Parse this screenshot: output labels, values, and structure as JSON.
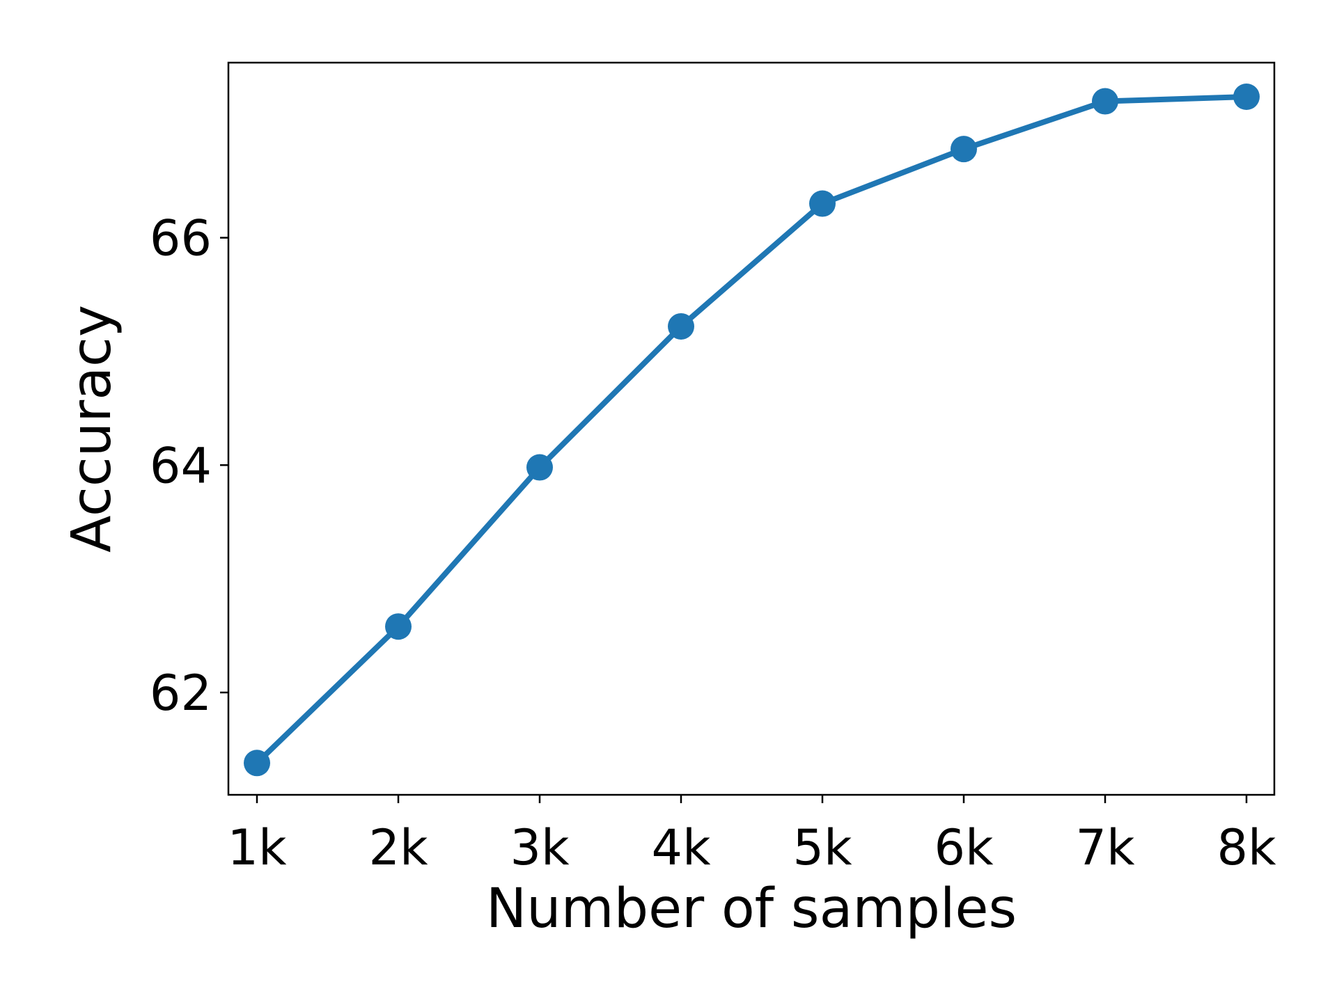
{
  "chart_data": {
    "type": "line",
    "title": "",
    "xlabel": "Number of samples",
    "ylabel": "Accuracy",
    "categories": [
      "1k",
      "2k",
      "3k",
      "4k",
      "5k",
      "6k",
      "7k",
      "8k"
    ],
    "series": [
      {
        "values": [
          61.38,
          62.58,
          63.98,
          65.22,
          66.3,
          66.78,
          67.2,
          67.24
        ],
        "color": "#1f77b4",
        "marker": "circle"
      }
    ],
    "yticks": [
      62,
      64,
      66
    ],
    "ytick_labels": [
      "62",
      "64",
      "66"
    ],
    "ylim": [
      61.1,
      67.54
    ],
    "grid": false,
    "legend": false
  }
}
